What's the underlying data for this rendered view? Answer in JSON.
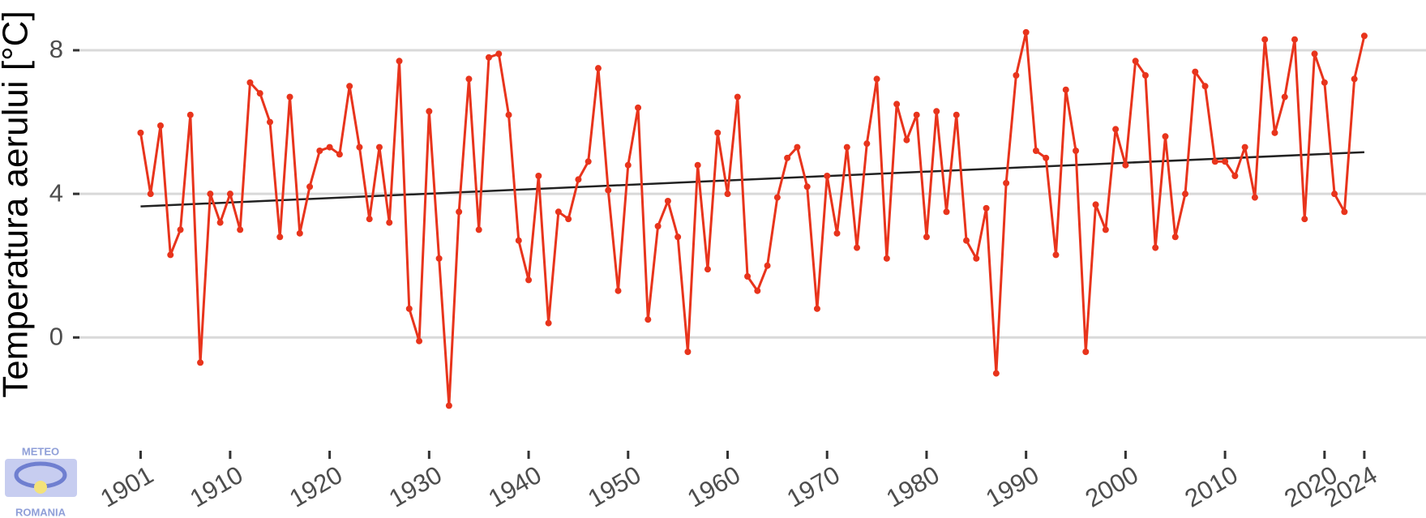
{
  "chart_data": {
    "type": "line",
    "y_label": "Temperatura aerului [°C]",
    "x": [
      1901,
      1902,
      1903,
      1904,
      1905,
      1906,
      1907,
      1908,
      1909,
      1910,
      1911,
      1912,
      1913,
      1914,
      1915,
      1916,
      1917,
      1918,
      1919,
      1920,
      1921,
      1922,
      1923,
      1924,
      1925,
      1926,
      1927,
      1928,
      1929,
      1930,
      1931,
      1932,
      1933,
      1934,
      1935,
      1936,
      1937,
      1938,
      1939,
      1940,
      1941,
      1942,
      1943,
      1944,
      1945,
      1946,
      1947,
      1948,
      1949,
      1950,
      1951,
      1952,
      1953,
      1954,
      1955,
      1956,
      1957,
      1958,
      1959,
      1960,
      1961,
      1962,
      1963,
      1964,
      1965,
      1966,
      1967,
      1968,
      1969,
      1970,
      1971,
      1972,
      1973,
      1974,
      1975,
      1976,
      1977,
      1978,
      1979,
      1980,
      1981,
      1982,
      1983,
      1984,
      1985,
      1986,
      1987,
      1988,
      1989,
      1990,
      1991,
      1992,
      1993,
      1994,
      1995,
      1996,
      1997,
      1998,
      1999,
      2000,
      2001,
      2002,
      2003,
      2004,
      2005,
      2006,
      2007,
      2008,
      2009,
      2010,
      2011,
      2012,
      2013,
      2014,
      2015,
      2016,
      2017,
      2018,
      2019,
      2020,
      2021,
      2022,
      2023,
      2024
    ],
    "series": [
      {
        "color": "#e8341c",
        "values": [
          5.7,
          4.0,
          5.9,
          2.3,
          3.0,
          6.2,
          -0.7,
          4.0,
          3.2,
          4.0,
          3.0,
          7.1,
          6.8,
          6.0,
          2.8,
          6.7,
          2.9,
          4.2,
          5.2,
          5.3,
          5.1,
          7.0,
          5.3,
          3.3,
          5.3,
          3.2,
          7.7,
          0.8,
          -0.1,
          6.3,
          2.2,
          -1.9,
          3.5,
          7.2,
          3.0,
          7.8,
          7.9,
          6.2,
          2.7,
          1.6,
          4.5,
          0.4,
          3.5,
          3.3,
          4.4,
          4.9,
          7.5,
          4.1,
          1.3,
          4.8,
          6.4,
          0.5,
          3.1,
          3.8,
          2.8,
          -0.4,
          4.8,
          1.9,
          5.7,
          4.0,
          6.7,
          1.7,
          1.3,
          2.0,
          3.9,
          5.0,
          5.3,
          4.2,
          0.8,
          4.5,
          2.9,
          5.3,
          2.5,
          5.4,
          7.2,
          2.2,
          6.5,
          5.5,
          6.2,
          2.8,
          6.3,
          3.5,
          6.2,
          2.7,
          2.2,
          3.6,
          -1.0,
          4.3,
          7.3,
          8.5,
          5.2,
          5.0,
          2.3,
          6.9,
          5.2,
          -0.4,
          3.7,
          3.0,
          5.8,
          4.8,
          7.7,
          7.3,
          2.5,
          5.6,
          2.8,
          4.0,
          7.4,
          7.0,
          4.9,
          4.9,
          4.5,
          5.3,
          3.9,
          8.3,
          5.7,
          6.7,
          8.3,
          3.3,
          7.9,
          7.1,
          4.0,
          3.5,
          7.2,
          8.4
        ]
      }
    ],
    "trend_line": {
      "x": [
        1901,
        2024
      ],
      "values": [
        3.65,
        5.16
      ],
      "color": "#222222"
    },
    "xlim": [
      1894.2,
      2030.2
    ],
    "xticks": [
      1901,
      1910,
      1920,
      1930,
      1940,
      1950,
      1960,
      1970,
      1980,
      1990,
      2000,
      2010,
      2020,
      2024
    ],
    "ylim": [
      -2.5,
      9.4
    ],
    "yticks": [
      0,
      4,
      8
    ],
    "grid": true
  },
  "logo": {
    "top": "METEO",
    "bottom": "ROMANIA"
  }
}
